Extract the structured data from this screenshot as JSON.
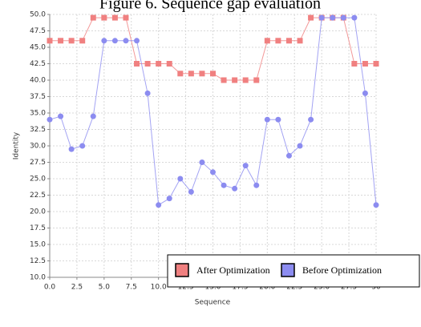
{
  "chart_data": {
    "type": "line",
    "title": "Figure 6. Sequence gap evaluation",
    "x_label": "Sequence",
    "y_label": "Identity",
    "x": [
      0,
      1,
      2,
      3,
      4,
      5,
      6,
      7,
      8,
      9,
      10,
      11,
      12,
      13,
      14,
      15,
      16,
      17,
      18,
      19,
      20,
      21,
      22,
      23,
      24,
      25,
      26,
      27,
      28,
      29,
      30
    ],
    "series": [
      {
        "name": "After Optimization",
        "color": "#f08080",
        "marker": "square",
        "values": [
          46,
          46,
          46,
          46,
          49.5,
          49.5,
          49.5,
          49.5,
          42.5,
          42.5,
          42.5,
          42.5,
          41,
          41,
          41,
          41,
          40,
          40,
          40,
          40,
          46,
          46,
          46,
          46,
          49.5,
          49.5,
          49.5,
          49.5,
          42.5,
          42.5,
          42.5
        ]
      },
      {
        "name": "Before Optimization",
        "color": "#8c8cf0",
        "marker": "circle",
        "values": [
          34,
          34.5,
          29.5,
          30,
          34.5,
          46,
          46,
          46,
          46,
          38,
          21,
          22,
          25,
          23,
          27.5,
          26,
          24,
          23.5,
          27,
          24,
          34,
          34,
          28.5,
          30,
          34,
          49.5,
          49.5,
          49.5,
          49.5,
          38,
          21
        ]
      }
    ],
    "xlim": [
      0,
      30
    ],
    "xticks": [
      {
        "value": 0,
        "label": "0.0"
      },
      2.5,
      {
        "value": 5,
        "label": "5.0"
      },
      7.5,
      {
        "value": 10,
        "label": "10.0"
      },
      12.5,
      {
        "value": 15,
        "label": "15.0"
      },
      17.5,
      {
        "value": 20,
        "label": "20.0"
      },
      22.5,
      {
        "value": 25,
        "label": "25.0"
      },
      27.5,
      30
    ],
    "ylim": [
      10,
      50
    ],
    "yticks": [
      {
        "value": 10,
        "label": "10.0"
      },
      12.5,
      {
        "value": 15,
        "label": "15.0"
      },
      17.5,
      {
        "value": 20,
        "label": "20.0"
      },
      22.5,
      {
        "value": 25,
        "label": "25.0"
      },
      27.5,
      {
        "value": 30,
        "label": "30.0"
      },
      32.5,
      {
        "value": 35,
        "label": "35.0"
      },
      37.5,
      {
        "value": 40,
        "label": "40.0"
      },
      42.5,
      {
        "value": 45,
        "label": "45.0"
      },
      47.5,
      {
        "value": 50,
        "label": "50.0"
      }
    ],
    "grid": true,
    "legend": "lower right"
  }
}
